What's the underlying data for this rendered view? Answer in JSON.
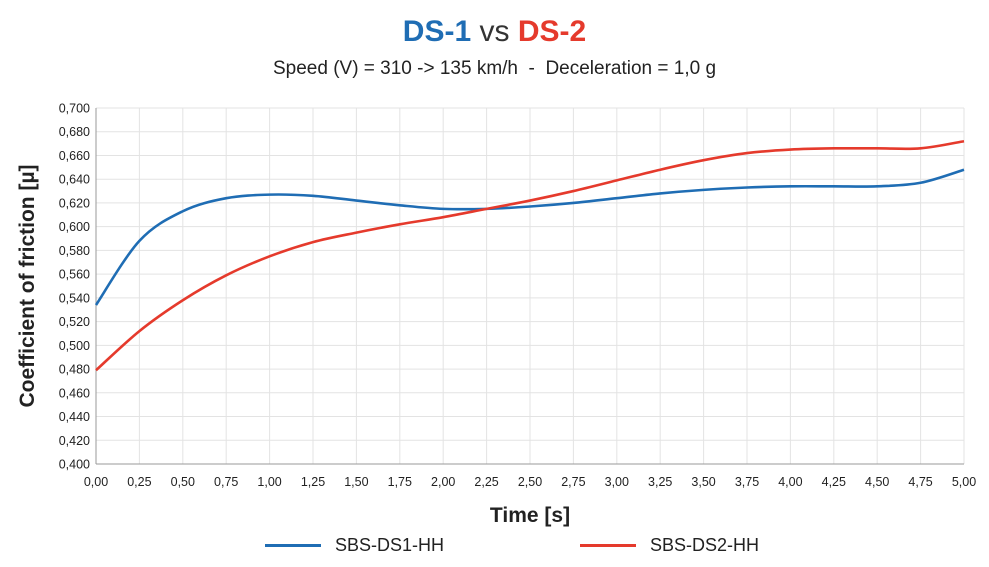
{
  "title": {
    "part1": "DS-1",
    "vs": "vs",
    "part2": "DS-2",
    "subtitle": "Speed (V) = 310 -> 135 km/h  -  Deceleration = 1,0 g"
  },
  "colors": {
    "ds1": "#1f6db4",
    "ds2": "#e53a2c",
    "grid": "#e3e3e3",
    "axis": "#9a9a9a"
  },
  "chart_data": {
    "type": "line",
    "title": "DS-1 vs DS-2",
    "subtitle": "Speed (V) = 310 -> 135 km/h  -  Deceleration = 1,0 g",
    "xlabel": "Time [s]",
    "ylabel": "Coefficient of friction [µ]",
    "xlim": [
      0,
      5
    ],
    "ylim": [
      0.4,
      0.7
    ],
    "grid": true,
    "legend_position": "bottom",
    "x_ticks": [
      "0,00",
      "0,25",
      "0,50",
      "0,75",
      "1,00",
      "1,25",
      "1,50",
      "1,75",
      "2,00",
      "2,25",
      "2,50",
      "2,75",
      "3,00",
      "3,25",
      "3,50",
      "3,75",
      "4,00",
      "4,25",
      "4,50",
      "4,75",
      "5,00"
    ],
    "y_ticks": [
      "0,400",
      "0,420",
      "0,440",
      "0,460",
      "0,480",
      "0,500",
      "0,520",
      "0,540",
      "0,560",
      "0,580",
      "0,600",
      "0,620",
      "0,640",
      "0,660",
      "0,680",
      "0,700"
    ],
    "x": [
      0,
      0.25,
      0.5,
      0.75,
      1.0,
      1.25,
      1.5,
      1.75,
      2.0,
      2.25,
      2.5,
      2.75,
      3.0,
      3.25,
      3.5,
      3.75,
      4.0,
      4.25,
      4.5,
      4.75,
      5.0
    ],
    "series": [
      {
        "name": "SBS-DS1-HH",
        "color": "#1f6db4",
        "values": [
          0.534,
          0.588,
          0.613,
          0.624,
          0.627,
          0.626,
          0.622,
          0.618,
          0.615,
          0.615,
          0.617,
          0.62,
          0.624,
          0.628,
          0.631,
          0.633,
          0.634,
          0.634,
          0.634,
          0.637,
          0.648
        ]
      },
      {
        "name": "SBS-DS2-HH",
        "color": "#e53a2c",
        "values": [
          0.479,
          0.512,
          0.538,
          0.559,
          0.575,
          0.587,
          0.595,
          0.602,
          0.608,
          0.615,
          0.622,
          0.63,
          0.639,
          0.648,
          0.656,
          0.662,
          0.665,
          0.666,
          0.666,
          0.666,
          0.672
        ]
      }
    ]
  }
}
